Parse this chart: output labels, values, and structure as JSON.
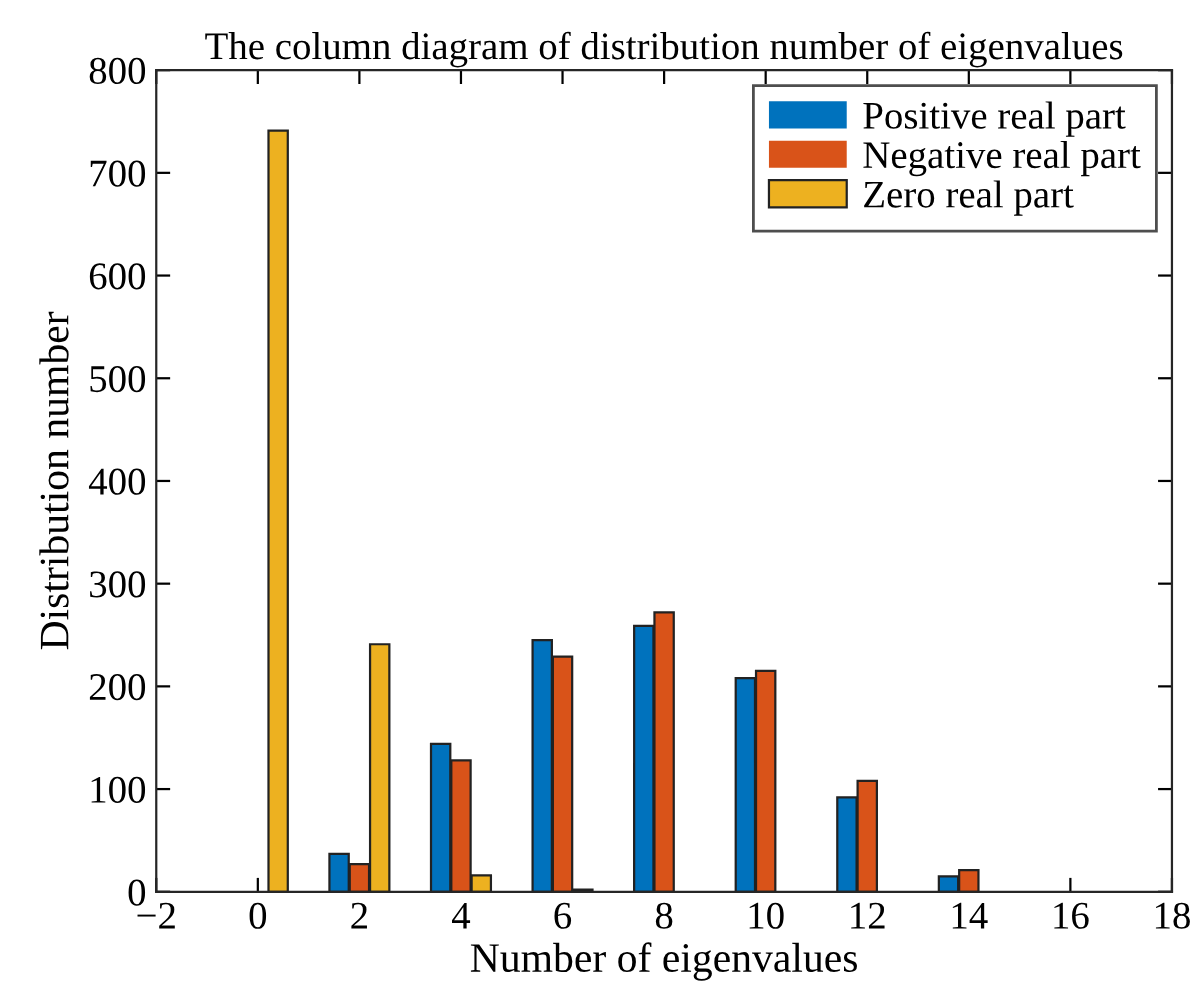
{
  "chart_data": {
    "type": "bar",
    "title": "The column diagram of distribution number of eigenvalues",
    "xlabel": "Number of eigenvalues",
    "ylabel": "Distribution number",
    "x": [
      0,
      2,
      4,
      6,
      8,
      10,
      12,
      14,
      16
    ],
    "series": [
      {
        "name": "Positive real part",
        "color": "#0072bd",
        "values": [
          0,
          37,
          144,
          245,
          259,
          208,
          92,
          15,
          0
        ]
      },
      {
        "name": "Negative real part",
        "color": "#d95319",
        "values": [
          0,
          27,
          128,
          229,
          272,
          215,
          108,
          21,
          0
        ]
      },
      {
        "name": "Zero real part",
        "color": "#edb120",
        "values": [
          741,
          241,
          16,
          2,
          0,
          0,
          0,
          0,
          0
        ]
      }
    ],
    "xlim": [
      -2,
      18
    ],
    "xticks": [
      -2,
      0,
      2,
      4,
      6,
      8,
      10,
      12,
      14,
      16,
      18
    ],
    "ylim": [
      0,
      800
    ],
    "yticks": [
      0,
      100,
      200,
      300,
      400,
      500,
      600,
      700,
      800
    ],
    "grid": false,
    "legend": "top right"
  }
}
